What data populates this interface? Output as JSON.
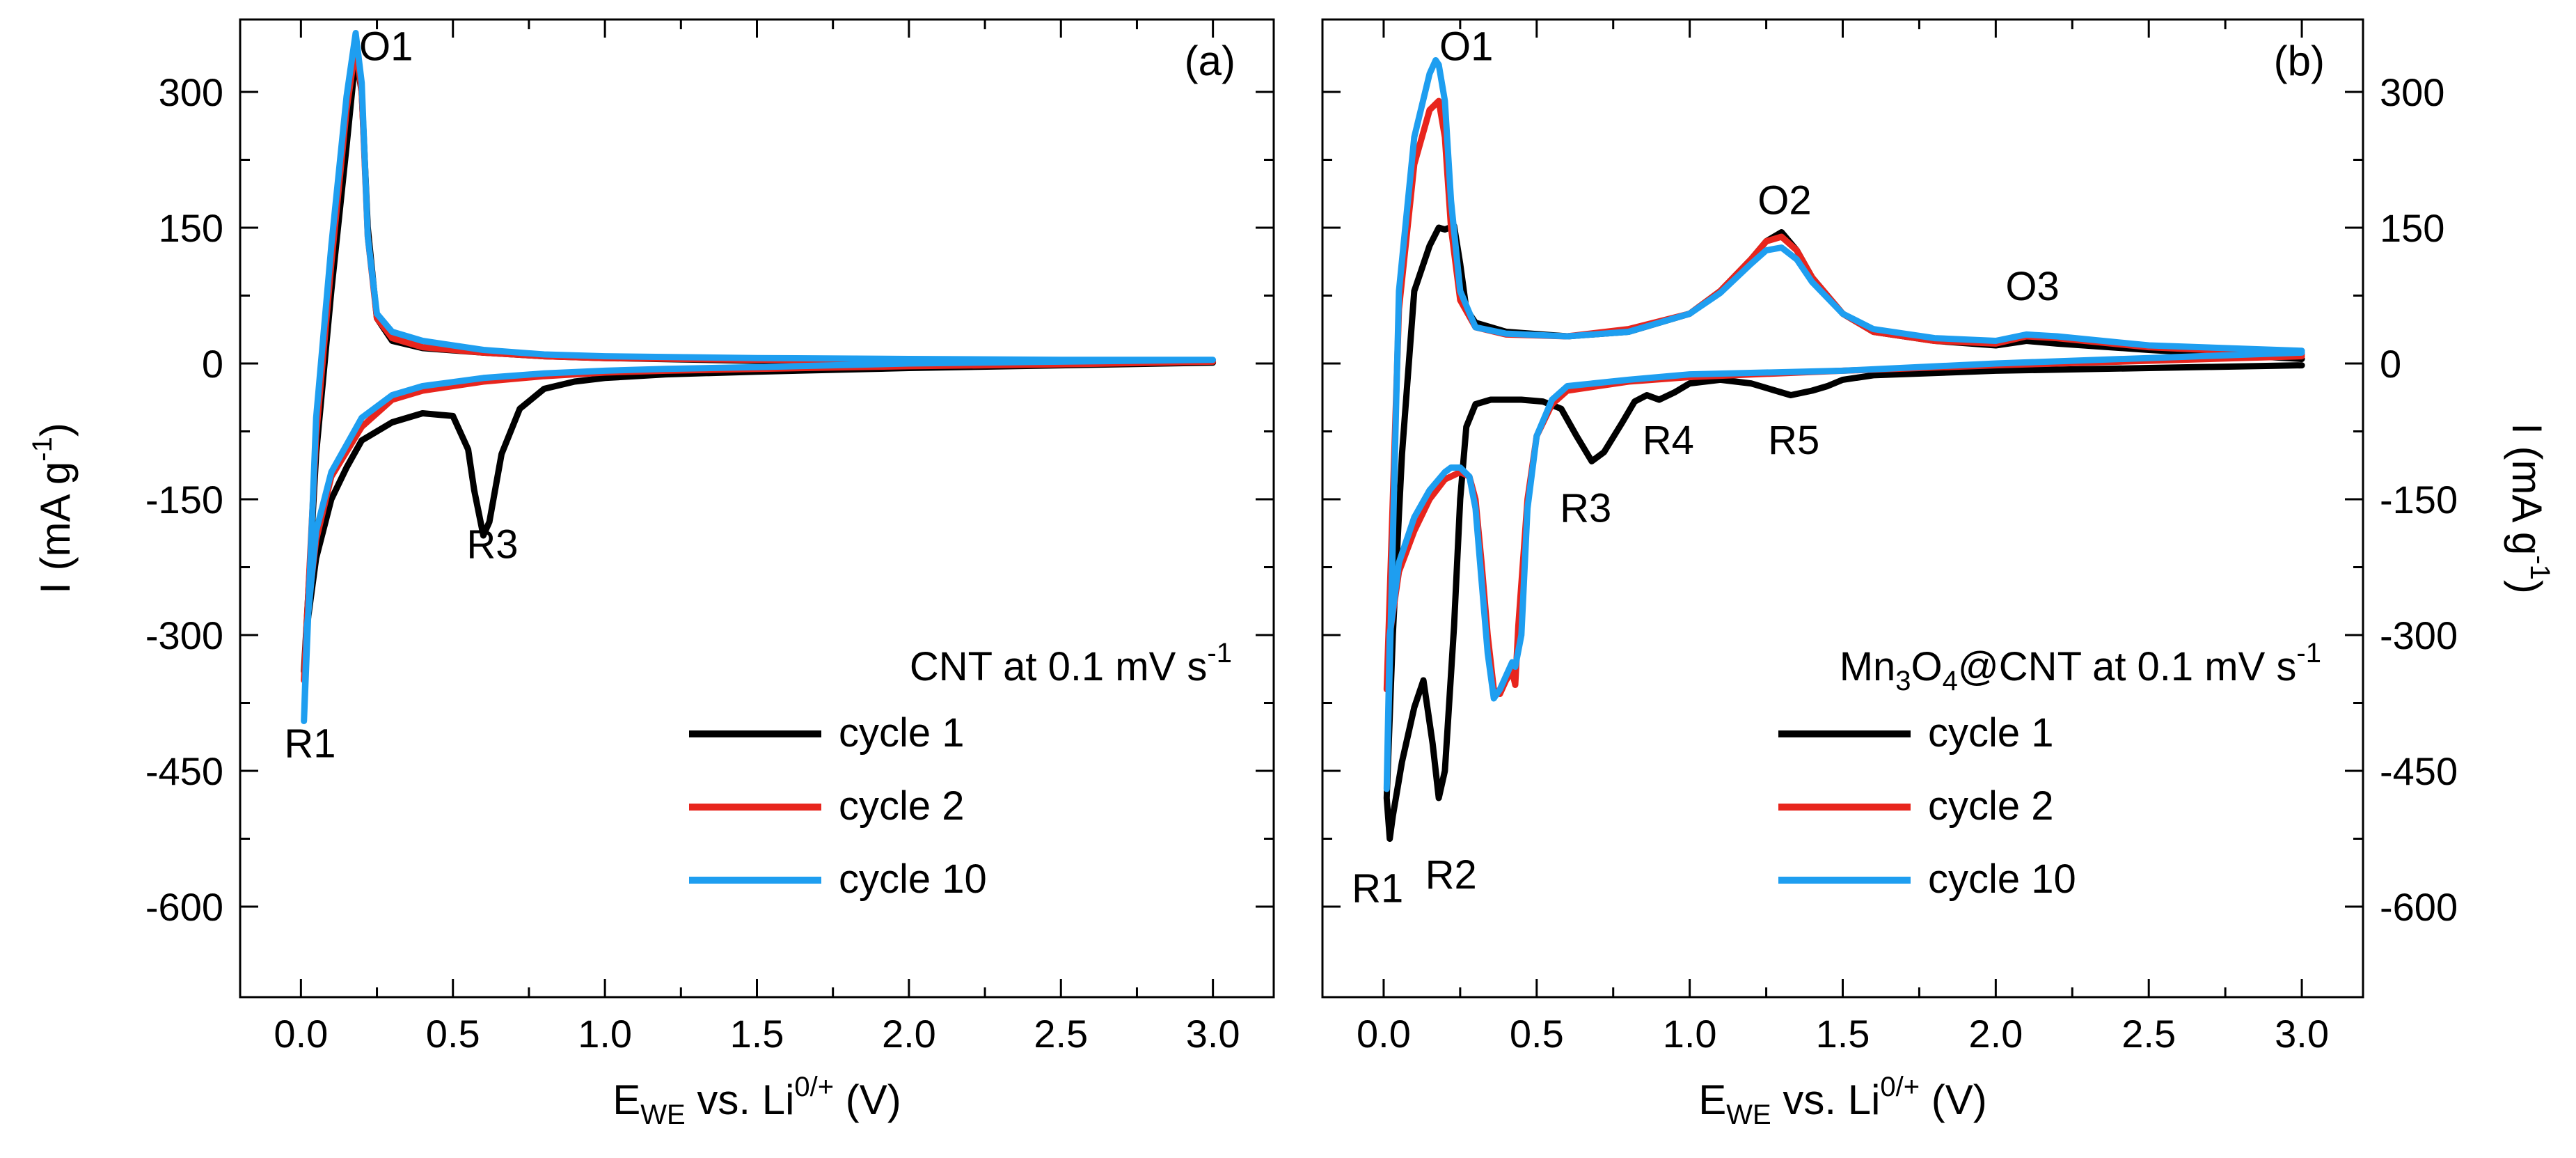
{
  "chart_data": [
    {
      "type": "line",
      "panel_tag": "(a)",
      "xlabel": {
        "main": "E",
        "sub": "WE",
        "mid": " vs. Li",
        "sup": "0/+",
        "end": " (V)"
      },
      "ylabel": {
        "main": "I (mA g",
        "sup": "-1",
        "end": ")"
      },
      "y_axis_side": "left",
      "xlim": [
        -0.2,
        3.2
      ],
      "ylim": [
        -700,
        380
      ],
      "xticks": [
        0.0,
        0.5,
        1.0,
        1.5,
        2.0,
        2.5,
        3.0
      ],
      "xtick_labels": [
        "0.0",
        "0.5",
        "1.0",
        "1.5",
        "2.0",
        "2.5",
        "3.0"
      ],
      "yticks": [
        300,
        150,
        0,
        -150,
        -300,
        -450,
        -600
      ],
      "ytick_labels": [
        "300",
        "150",
        "0",
        "-150",
        "-300",
        "-450",
        "-600"
      ],
      "legend": {
        "title": {
          "text": "CNT at 0.1 mV s",
          "sup": "-1"
        },
        "position": "lower-right"
      },
      "annotations": [
        {
          "text": "O1",
          "x": 0.28,
          "y": 335
        },
        {
          "text": "R3",
          "x": 0.63,
          "y": -215
        },
        {
          "text": "R1",
          "x": 0.03,
          "y": -435
        }
      ],
      "series": [
        {
          "name": "cycle 1",
          "color": "#000000",
          "x": [
            3.0,
            2.5,
            2.0,
            1.5,
            1.2,
            1.0,
            0.9,
            0.8,
            0.72,
            0.66,
            0.62,
            0.6,
            0.57,
            0.55,
            0.5,
            0.4,
            0.3,
            0.2,
            0.15,
            0.1,
            0.05,
            0.02,
            0.01,
            0.05,
            0.1,
            0.15,
            0.18,
            0.2,
            0.22,
            0.25,
            0.3,
            0.4,
            0.6,
            0.8,
            1.0,
            1.5,
            2.0,
            2.5,
            3.0
          ],
          "y": [
            1,
            -2,
            -5,
            -9,
            -12,
            -16,
            -20,
            -28,
            -50,
            -100,
            -175,
            -190,
            -140,
            -95,
            -58,
            -55,
            -65,
            -85,
            -115,
            -150,
            -215,
            -290,
            -340,
            -100,
            80,
            240,
            340,
            300,
            150,
            50,
            25,
            17,
            12,
            8,
            6,
            3,
            2,
            1,
            1
          ]
        },
        {
          "name": "cycle 2",
          "color": "#e8251d",
          "x": [
            3.0,
            2.5,
            2.0,
            1.5,
            1.2,
            1.0,
            0.8,
            0.6,
            0.4,
            0.3,
            0.2,
            0.1,
            0.05,
            0.02,
            0.01,
            0.05,
            0.1,
            0.15,
            0.18,
            0.2,
            0.22,
            0.25,
            0.3,
            0.4,
            0.6,
            0.8,
            1.0,
            1.5,
            2.0,
            2.5,
            3.0
          ],
          "y": [
            2,
            -1,
            -3,
            -6,
            -8,
            -10,
            -14,
            -20,
            -30,
            -40,
            -70,
            -125,
            -195,
            -280,
            -350,
            -80,
            110,
            280,
            350,
            300,
            140,
            50,
            28,
            18,
            12,
            8,
            6,
            4,
            3,
            2,
            2
          ]
        },
        {
          "name": "cycle 10",
          "color": "#1e9ef0",
          "x": [
            3.0,
            2.5,
            2.0,
            1.5,
            1.2,
            1.0,
            0.8,
            0.6,
            0.4,
            0.3,
            0.2,
            0.1,
            0.05,
            0.02,
            0.01,
            0.05,
            0.1,
            0.15,
            0.18,
            0.2,
            0.22,
            0.25,
            0.3,
            0.4,
            0.6,
            0.8,
            1.0,
            1.5,
            2.0,
            2.5,
            3.0
          ],
          "y": [
            4,
            2,
            0,
            -4,
            -6,
            -8,
            -11,
            -16,
            -25,
            -35,
            -60,
            -120,
            -185,
            -290,
            -395,
            -60,
            130,
            295,
            365,
            310,
            140,
            55,
            35,
            25,
            15,
            10,
            8,
            6,
            5,
            4,
            4
          ]
        }
      ]
    },
    {
      "type": "line",
      "panel_tag": "(b)",
      "xlabel": {
        "main": "E",
        "sub": "WE",
        "mid": " vs. Li",
        "sup": "0/+",
        "end": " (V)"
      },
      "ylabel": {
        "main": "I (mA g",
        "sup": "-1",
        "end": ")"
      },
      "y_axis_side": "right",
      "xlim": [
        -0.2,
        3.2
      ],
      "ylim": [
        -700,
        380
      ],
      "xticks": [
        0.0,
        0.5,
        1.0,
        1.5,
        2.0,
        2.5,
        3.0
      ],
      "xtick_labels": [
        "0.0",
        "0.5",
        "1.0",
        "1.5",
        "2.0",
        "2.5",
        "3.0"
      ],
      "yticks": [
        300,
        150,
        0,
        -150,
        -300,
        -450,
        -600
      ],
      "ytick_labels": [
        "300",
        "150",
        "0",
        "-150",
        "-300",
        "-450",
        "-600"
      ],
      "legend": {
        "title": {
          "pre": "Mn",
          "sub1": "3",
          "mid": "O",
          "sub2": "4",
          "text": "@CNT at 0.1 mV s",
          "sup": "-1"
        },
        "position": "lower-right"
      },
      "annotations": [
        {
          "text": "O1",
          "x": 0.27,
          "y": 335
        },
        {
          "text": "O2",
          "x": 1.31,
          "y": 165
        },
        {
          "text": "O3",
          "x": 2.12,
          "y": 70
        },
        {
          "text": "R3",
          "x": 0.66,
          "y": -175
        },
        {
          "text": "R4",
          "x": 0.93,
          "y": -100
        },
        {
          "text": "R5",
          "x": 1.34,
          "y": -100
        },
        {
          "text": "R1",
          "x": -0.02,
          "y": -595
        },
        {
          "text": "R2",
          "x": 0.22,
          "y": -580
        }
      ],
      "series": [
        {
          "name": "cycle 1",
          "color": "#000000",
          "x": [
            3.0,
            2.5,
            2.0,
            1.6,
            1.5,
            1.45,
            1.4,
            1.33,
            1.28,
            1.2,
            1.1,
            1.0,
            0.95,
            0.9,
            0.86,
            0.82,
            0.78,
            0.72,
            0.68,
            0.63,
            0.58,
            0.52,
            0.45,
            0.35,
            0.3,
            0.27,
            0.25,
            0.23,
            0.2,
            0.18,
            0.16,
            0.13,
            0.1,
            0.06,
            0.03,
            0.02,
            0.01,
            0.03,
            0.06,
            0.1,
            0.15,
            0.18,
            0.2,
            0.23,
            0.25,
            0.27,
            0.3,
            0.4,
            0.6,
            0.8,
            1.0,
            1.1,
            1.2,
            1.25,
            1.3,
            1.35,
            1.4,
            1.5,
            1.6,
            1.8,
            2.0,
            2.1,
            2.2,
            2.5,
            3.0
          ],
          "y": [
            -2,
            -5,
            -8,
            -13,
            -18,
            -25,
            -30,
            -35,
            -30,
            -22,
            -18,
            -22,
            -32,
            -40,
            -35,
            -42,
            -65,
            -98,
            -108,
            -80,
            -50,
            -42,
            -40,
            -40,
            -45,
            -70,
            -150,
            -290,
            -450,
            -480,
            -420,
            -350,
            -380,
            -440,
            -500,
            -525,
            -480,
            -300,
            -100,
            80,
            130,
            150,
            148,
            152,
            110,
            60,
            45,
            35,
            30,
            35,
            55,
            80,
            115,
            135,
            145,
            125,
            95,
            55,
            35,
            25,
            20,
            25,
            22,
            15,
            5
          ]
        },
        {
          "name": "cycle 2",
          "color": "#e8251d",
          "x": [
            3.0,
            2.5,
            2.0,
            1.5,
            1.0,
            0.8,
            0.6,
            0.55,
            0.5,
            0.47,
            0.44,
            0.43,
            0.42,
            0.4,
            0.38,
            0.36,
            0.34,
            0.32,
            0.3,
            0.28,
            0.25,
            0.2,
            0.15,
            0.1,
            0.05,
            0.02,
            0.01,
            0.05,
            0.1,
            0.15,
            0.18,
            0.2,
            0.22,
            0.25,
            0.3,
            0.4,
            0.6,
            0.8,
            1.0,
            1.1,
            1.2,
            1.25,
            1.3,
            1.35,
            1.4,
            1.5,
            1.6,
            1.8,
            2.0,
            2.1,
            2.2,
            2.5,
            3.0
          ],
          "y": [
            8,
            3,
            -2,
            -8,
            -15,
            -20,
            -30,
            -45,
            -80,
            -150,
            -290,
            -355,
            -340,
            -350,
            -365,
            -360,
            -300,
            -220,
            -150,
            -125,
            -120,
            -128,
            -150,
            -185,
            -230,
            -300,
            -360,
            60,
            220,
            280,
            290,
            250,
            150,
            70,
            40,
            32,
            30,
            38,
            55,
            80,
            115,
            135,
            140,
            125,
            95,
            55,
            35,
            25,
            22,
            30,
            28,
            18,
            10
          ]
        },
        {
          "name": "cycle 10",
          "color": "#1e9ef0",
          "x": [
            3.0,
            2.5,
            2.0,
            1.5,
            1.0,
            0.8,
            0.6,
            0.55,
            0.5,
            0.47,
            0.45,
            0.43,
            0.42,
            0.4,
            0.38,
            0.36,
            0.34,
            0.32,
            0.3,
            0.28,
            0.25,
            0.22,
            0.2,
            0.15,
            0.1,
            0.05,
            0.02,
            0.01,
            0.05,
            0.1,
            0.15,
            0.17,
            0.18,
            0.2,
            0.22,
            0.25,
            0.3,
            0.4,
            0.6,
            0.8,
            1.0,
            1.1,
            1.2,
            1.25,
            1.3,
            1.35,
            1.4,
            1.5,
            1.6,
            1.8,
            2.0,
            2.1,
            2.2,
            2.5,
            3.0
          ],
          "y": [
            12,
            6,
            0,
            -8,
            -12,
            -18,
            -25,
            -40,
            -80,
            -160,
            -300,
            -335,
            -330,
            -345,
            -360,
            -370,
            -320,
            -240,
            -160,
            -125,
            -115,
            -115,
            -120,
            -140,
            -170,
            -220,
            -300,
            -470,
            80,
            250,
            320,
            335,
            330,
            290,
            180,
            80,
            40,
            33,
            30,
            35,
            55,
            78,
            110,
            125,
            128,
            115,
            90,
            55,
            38,
            28,
            25,
            32,
            30,
            20,
            14
          ]
        }
      ]
    }
  ]
}
